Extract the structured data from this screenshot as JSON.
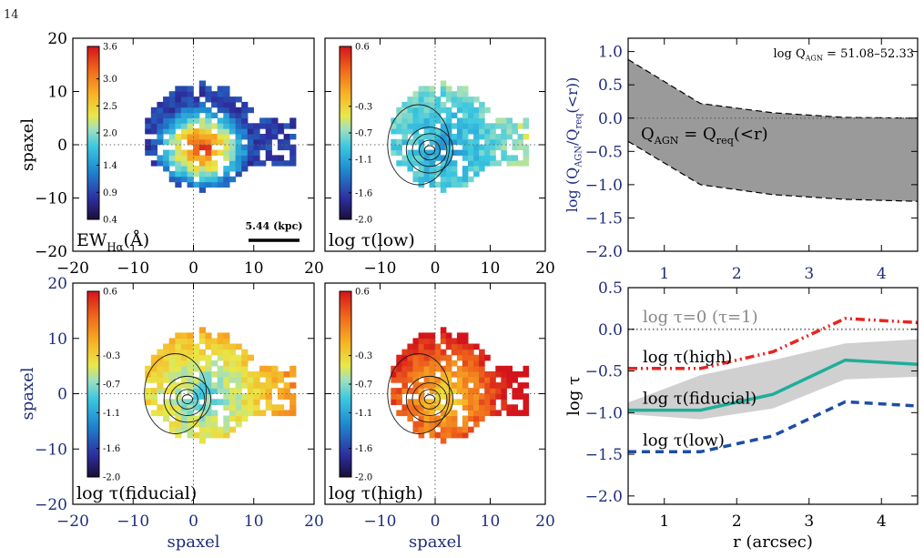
{
  "page_number": "14",
  "chart_data": [
    {
      "type": "heatmap",
      "panel": "maps",
      "xlabel": "spaxel",
      "ylabel": "spaxel",
      "xlim": [
        -20,
        20
      ],
      "ylim": [
        -20,
        20
      ],
      "xticks": [
        "−20",
        "−10",
        "0",
        "10",
        "20"
      ],
      "yticks": [
        "−20",
        "−10",
        "0",
        "10",
        "20"
      ],
      "maps": [
        {
          "name": "ew",
          "label": "EW",
          "label_sub": "Hα",
          "label_tail": "(Å)",
          "colorbar_ticks": [
            "3.6",
            "3.0",
            "2.5",
            "2.0",
            "1.4",
            "0.9",
            "0.4"
          ],
          "colorbar_range": [
            0.4,
            3.6
          ],
          "scale_bar": "5.44 (kpc)",
          "contours": false
        },
        {
          "name": "low",
          "label": "log τ(low)",
          "colorbar_ticks": [
            "0.6",
            "-0.3",
            "-0.7",
            "-1.1",
            "-1.6",
            "-2.0"
          ],
          "colorbar_range": [
            -2.0,
            0.6
          ],
          "contours": true
        },
        {
          "name": "fiducial",
          "label": "log τ(fiducial)",
          "colorbar_ticks": [
            "0.6",
            "-0.3",
            "-0.7",
            "-1.1",
            "-1.6",
            "-2.0"
          ],
          "colorbar_range": [
            -2.0,
            0.6
          ],
          "contours": true
        },
        {
          "name": "high",
          "label": "log τ(high)",
          "colorbar_ticks": [
            "0.6",
            "-0.3",
            "-0.7",
            "-1.1",
            "-1.6",
            "-2.0"
          ],
          "colorbar_range": [
            -2.0,
            0.6
          ],
          "contours": true
        }
      ]
    },
    {
      "type": "area",
      "panel": "top-right",
      "xlabel": "",
      "ylabel": "log (Q_AGN/Q_req(<r))",
      "ylabel_parts": [
        "log (Q",
        "AGN",
        "/Q",
        "req",
        "(<r))"
      ],
      "xlim": [
        0.5,
        4.5
      ],
      "ylim": [
        -2.0,
        1.2
      ],
      "xticks": [
        "1",
        "2",
        "3",
        "4"
      ],
      "yticks": [
        "1.0",
        "0.5",
        "0.0",
        "−0.5",
        "−1.0",
        "−1.5",
        "−2.0"
      ],
      "annotation_top": {
        "main": "log Q",
        "sub": "AGN",
        "tail": " = 51.08–52.33"
      },
      "annotation_mid": {
        "a": "Q",
        "a_sub": "AGN",
        "mid": " = Q",
        "b_sub": "req",
        "tail": "(<r)"
      },
      "x": [
        0.5,
        1.5,
        2.5,
        3.5,
        4.5
      ],
      "series": [
        {
          "name": "upper",
          "values": [
            0.88,
            0.22,
            0.08,
            0.01,
            0.0
          ]
        },
        {
          "name": "lower",
          "values": [
            -0.35,
            -1.0,
            -1.15,
            -1.22,
            -1.25
          ]
        }
      ],
      "reference_line": 0.0,
      "colors": {
        "band": "#9a9a9a"
      }
    },
    {
      "type": "line",
      "panel": "bottom-right",
      "xlabel": "r (arcsec)",
      "ylabel": "log τ",
      "xlim": [
        0.5,
        4.5
      ],
      "ylim": [
        -2.1,
        0.5
      ],
      "xticks": [
        "1",
        "2",
        "3",
        "4"
      ],
      "yticks": [
        "0.5",
        "0.0",
        "−0.5",
        "−1.0",
        "−1.5",
        "−2.0"
      ],
      "x": [
        0.5,
        1.5,
        2.5,
        3.5,
        4.5
      ],
      "series": [
        {
          "name": "log τ(high)",
          "values": [
            -0.47,
            -0.47,
            -0.27,
            0.13,
            0.08
          ],
          "color": "#e8251f"
        },
        {
          "name": "log τ(fiducial)",
          "values": [
            -0.97,
            -0.97,
            -0.78,
            -0.37,
            -0.42
          ],
          "color": "#1fae9a"
        },
        {
          "name": "log τ(low)",
          "values": [
            -1.47,
            -1.47,
            -1.28,
            -0.87,
            -0.92
          ],
          "color": "#1d4ea6"
        }
      ],
      "band": {
        "upper": [
          -0.88,
          -0.55,
          -0.37,
          -0.17,
          -0.12
        ],
        "lower": [
          -1.02,
          -1.08,
          -0.95,
          -0.6,
          -0.57
        ],
        "color": "#d0d0d0"
      },
      "reference_line": {
        "y": 0.0,
        "label": "log τ=0 (τ=1)"
      }
    }
  ]
}
